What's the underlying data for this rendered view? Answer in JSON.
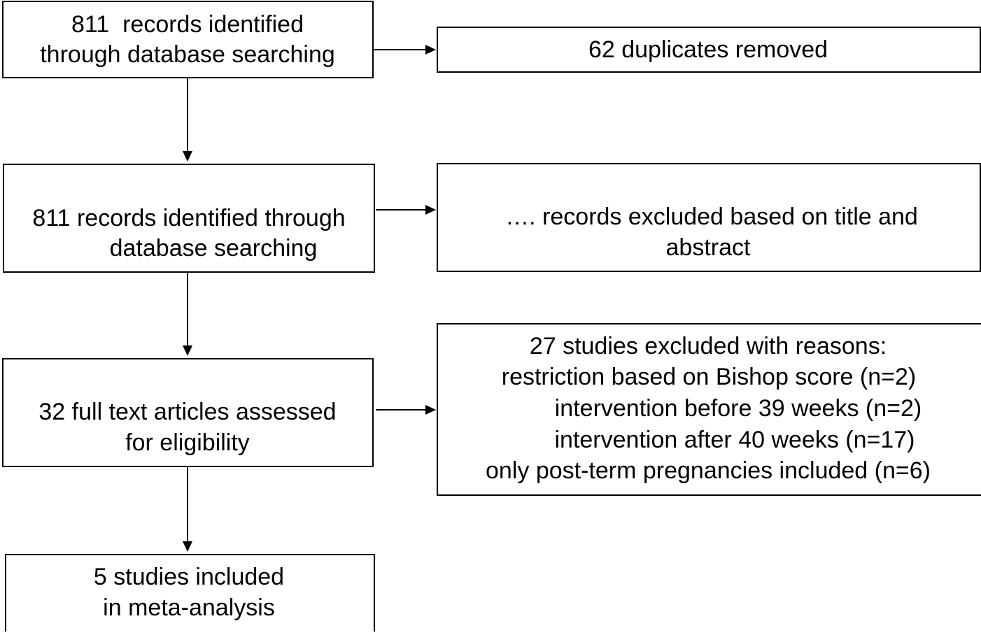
{
  "boxes": [
    {
      "lines": [
        "811  records identified",
        "through database searching"
      ]
    },
    {
      "lines": [
        "62 duplicates removed"
      ]
    },
    {
      "lines": [
        "811 records identified through",
        "database searching"
      ]
    },
    {
      "lines": [
        "…. records excluded based on title and",
        "abstract"
      ]
    },
    {
      "lines": [
        "32 full text articles assessed",
        "for eligibility"
      ]
    },
    {
      "lines": [
        "27 studies excluded with reasons:",
        "restriction based on Bishop score (n=2)",
        "intervention before 39 weeks (n=2)",
        "intervention after 40 weeks (n=17)",
        "only post-term pregnancies included (n=6)"
      ]
    },
    {
      "lines": [
        "5 studies included",
        "in meta-analysis"
      ]
    }
  ]
}
